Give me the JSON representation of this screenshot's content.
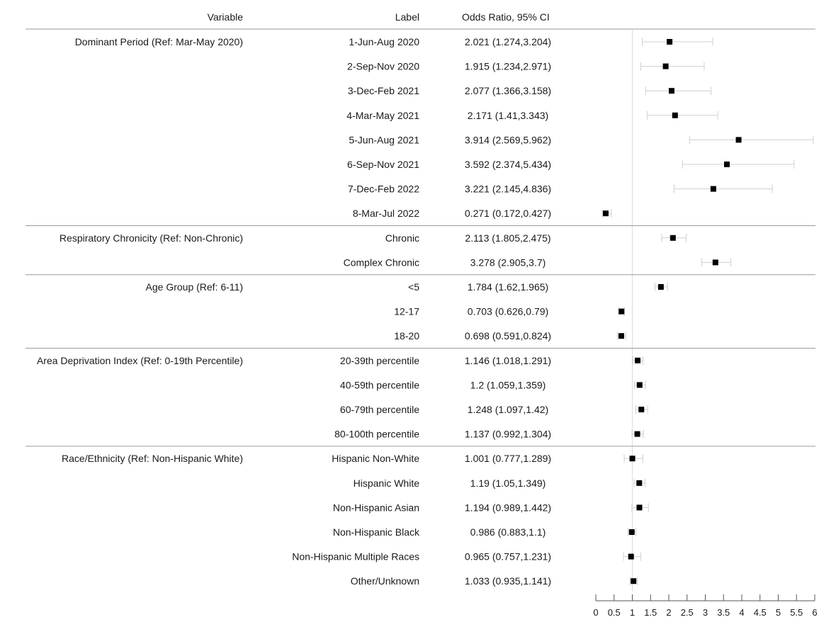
{
  "chart_data": {
    "type": "forest",
    "headers": {
      "variable": "Variable",
      "label": "Label",
      "estimate": "Odds Ratio, 95% CI"
    },
    "reference_line": 1,
    "x_ticks": [
      0,
      0.5,
      1,
      1.5,
      2,
      2.5,
      3,
      3.5,
      4,
      4.5,
      5,
      5.5,
      6
    ],
    "x_tick_labels": [
      "0",
      "0.5",
      "1",
      "1.5",
      "2",
      "2.5",
      "3",
      "3.5",
      "4",
      "4.5",
      "5",
      "5.5",
      "6"
    ],
    "xlim": [
      0,
      6
    ],
    "groups": [
      {
        "variable": "Dominant Period  (Ref: Mar-May 2020)",
        "rows": [
          {
            "label": "1-Jun-Aug 2020",
            "text": "2.021 (1.274,3.204)",
            "or": 2.021,
            "lo": 1.274,
            "hi": 3.204
          },
          {
            "label": "2-Sep-Nov 2020",
            "text": "1.915 (1.234,2.971)",
            "or": 1.915,
            "lo": 1.234,
            "hi": 2.971
          },
          {
            "label": "3-Dec-Feb 2021",
            "text": "2.077 (1.366,3.158)",
            "or": 2.077,
            "lo": 1.366,
            "hi": 3.158
          },
          {
            "label": "4-Mar-May 2021",
            "text": "2.171 (1.41,3.343)",
            "or": 2.171,
            "lo": 1.41,
            "hi": 3.343
          },
          {
            "label": "5-Jun-Aug 2021",
            "text": "3.914 (2.569,5.962)",
            "or": 3.914,
            "lo": 2.569,
            "hi": 5.962
          },
          {
            "label": "6-Sep-Nov 2021",
            "text": "3.592 (2.374,5.434)",
            "or": 3.592,
            "lo": 2.374,
            "hi": 5.434
          },
          {
            "label": "7-Dec-Feb 2022",
            "text": "3.221 (2.145,4.836)",
            "or": 3.221,
            "lo": 2.145,
            "hi": 4.836
          },
          {
            "label": "8-Mar-Jul 2022",
            "text": "0.271 (0.172,0.427)",
            "or": 0.271,
            "lo": 0.172,
            "hi": 0.427
          }
        ]
      },
      {
        "variable": "Respiratory Chronicity (Ref: Non-Chronic)",
        "rows": [
          {
            "label": "Chronic",
            "text": "2.113 (1.805,2.475)",
            "or": 2.113,
            "lo": 1.805,
            "hi": 2.475
          },
          {
            "label": "Complex Chronic",
            "text": "3.278 (2.905,3.7)",
            "or": 3.278,
            "lo": 2.905,
            "hi": 3.7
          }
        ]
      },
      {
        "variable": "Age Group (Ref: 6-11)",
        "rows": [
          {
            "label": "<5",
            "text": "1.784 (1.62,1.965)",
            "or": 1.784,
            "lo": 1.62,
            "hi": 1.965
          },
          {
            "label": "12-17",
            "text": "0.703 (0.626,0.79)",
            "or": 0.703,
            "lo": 0.626,
            "hi": 0.79
          },
          {
            "label": "18-20",
            "text": "0.698 (0.591,0.824)",
            "or": 0.698,
            "lo": 0.591,
            "hi": 0.824
          }
        ]
      },
      {
        "variable": "Area Deprivation Index (Ref: 0-19th Percentile)",
        "rows": [
          {
            "label": "20-39th percentile",
            "text": "1.146 (1.018,1.291)",
            "or": 1.146,
            "lo": 1.018,
            "hi": 1.291
          },
          {
            "label": "40-59th percentile",
            "text": "1.2 (1.059,1.359)",
            "or": 1.2,
            "lo": 1.059,
            "hi": 1.359
          },
          {
            "label": "60-79th percentile",
            "text": "1.248 (1.097,1.42)",
            "or": 1.248,
            "lo": 1.097,
            "hi": 1.42
          },
          {
            "label": "80-100th percentile",
            "text": "1.137 (0.992,1.304)",
            "or": 1.137,
            "lo": 0.992,
            "hi": 1.304
          }
        ]
      },
      {
        "variable": "Race/Ethnicity (Ref: Non-Hispanic White)",
        "rows": [
          {
            "label": "Hispanic Non-White",
            "text": "1.001 (0.777,1.289)",
            "or": 1.001,
            "lo": 0.777,
            "hi": 1.289
          },
          {
            "label": "Hispanic White",
            "text": "1.19 (1.05,1.349)",
            "or": 1.19,
            "lo": 1.05,
            "hi": 1.349
          },
          {
            "label": "Non-Hispanic Asian",
            "text": "1.194 (0.989,1.442)",
            "or": 1.194,
            "lo": 0.989,
            "hi": 1.442
          },
          {
            "label": "Non-Hispanic Black",
            "text": "0.986 (0.883,1.1)",
            "or": 0.986,
            "lo": 0.883,
            "hi": 1.1
          },
          {
            "label": "Non-Hispanic Multiple Races",
            "text": "0.965 (0.757,1.231)",
            "or": 0.965,
            "lo": 0.757,
            "hi": 1.231
          },
          {
            "label": "Other/Unknown",
            "text": "1.033 (0.935,1.141)",
            "or": 1.033,
            "lo": 0.935,
            "hi": 1.141
          }
        ]
      }
    ]
  }
}
